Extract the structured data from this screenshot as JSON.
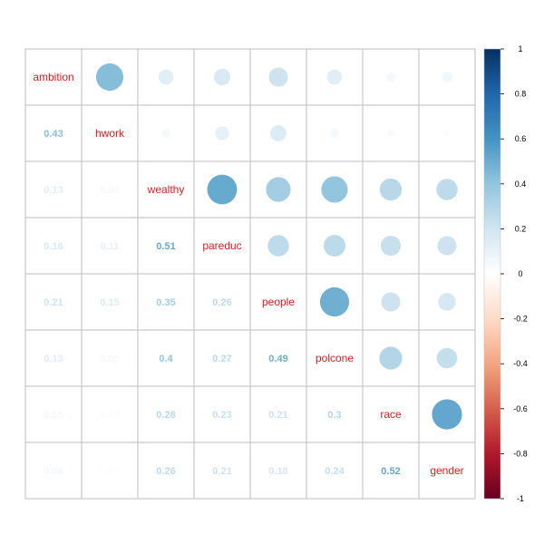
{
  "chart_data": {
    "type": "heatmap",
    "variables": [
      "ambition",
      "hwork",
      "wealthy",
      "pareduc",
      "people",
      "polcone",
      "race",
      "gender"
    ],
    "lower_labels": [
      [
        "",
        "",
        "",
        "",
        "",
        "",
        "",
        ""
      ],
      [
        "0.43",
        "",
        "",
        "",
        "",
        "",
        "",
        ""
      ],
      [
        "0.13",
        "0.05",
        "",
        "",
        "",
        "",
        "",
        ""
      ],
      [
        "0.16",
        "0.11",
        "0.51",
        "",
        "",
        "",
        "",
        ""
      ],
      [
        "0.21",
        "0.15",
        "0.35",
        "0.26",
        "",
        "",
        "",
        ""
      ],
      [
        "0.13",
        "0.05",
        "0.4",
        "0.27",
        "0.49",
        "",
        "",
        ""
      ],
      [
        "0.05",
        "0.03",
        "0.28",
        "0.23",
        "0.21",
        "0.3",
        "",
        ""
      ],
      [
        "0.06",
        "0.02",
        "0.26",
        "0.21",
        "0.18",
        "0.24",
        "0.52",
        ""
      ]
    ],
    "matrix": [
      [
        1,
        0.43,
        0.13,
        0.16,
        0.21,
        0.13,
        0.05,
        0.06
      ],
      [
        0.43,
        1,
        0.05,
        0.11,
        0.15,
        0.05,
        0.03,
        0.02
      ],
      [
        0.13,
        0.05,
        1,
        0.51,
        0.35,
        0.4,
        0.28,
        0.26
      ],
      [
        0.16,
        0.11,
        0.51,
        1,
        0.26,
        0.27,
        0.23,
        0.21
      ],
      [
        0.21,
        0.15,
        0.35,
        0.26,
        1,
        0.49,
        0.21,
        0.18
      ],
      [
        0.13,
        0.05,
        0.4,
        0.27,
        0.49,
        1,
        0.3,
        0.24
      ],
      [
        0.05,
        0.03,
        0.28,
        0.23,
        0.21,
        0.3,
        1,
        0.52
      ],
      [
        0.06,
        0.02,
        0.26,
        0.21,
        0.18,
        0.24,
        0.52,
        1
      ]
    ],
    "upper": "circle",
    "lower": "number",
    "diagonal": "variable names",
    "colorbar": {
      "range": [
        -1,
        1
      ],
      "ticks": [
        "1",
        "0.8",
        "0.6",
        "0.4",
        "0.2",
        "0",
        "-0.2",
        "-0.4",
        "-0.6",
        "-0.8",
        "-1"
      ],
      "colors": [
        "#67001F",
        "#B2182B",
        "#D6604D",
        "#F4A582",
        "#FDDBC7",
        "#FFFFFF",
        "#D1E5F0",
        "#92C5DE",
        "#4393C3",
        "#2166AC",
        "#053061"
      ]
    },
    "label_color": "#e31a1c",
    "grid_color": "#bebebe"
  }
}
